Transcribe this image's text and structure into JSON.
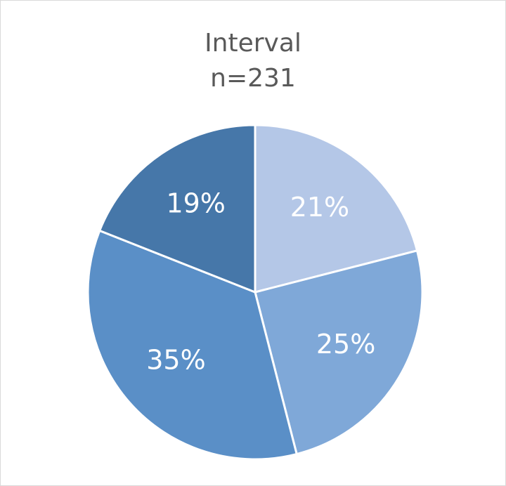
{
  "chart_data": {
    "type": "pie",
    "title": "Interval",
    "subtitle": "n=231",
    "slices": [
      {
        "label": "21%",
        "value": 21,
        "color": "#b4c7e7"
      },
      {
        "label": "25%",
        "value": 25,
        "color": "#7fa8d8"
      },
      {
        "label": "35%",
        "value": 35,
        "color": "#5a8fc7"
      },
      {
        "label": "19%",
        "value": 19,
        "color": "#4677a9"
      }
    ],
    "start_direction": "top",
    "direction": "clockwise",
    "legend": "none"
  }
}
